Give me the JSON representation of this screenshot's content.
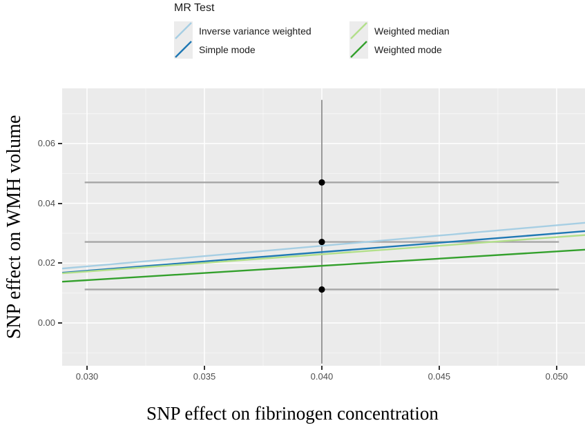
{
  "figure": {
    "background": "#ffffff",
    "panel_background": "#ebebeb",
    "gridline_color": "#ffffff",
    "tick_color": "#333333",
    "tick_label_color": "#4d4d4d",
    "axis_title_color": "#000000",
    "errorbar_color": "#a6a6a6",
    "vertical_errorbar_color": "#8f8f8f",
    "point_color": "#000000"
  },
  "legend": {
    "title": "MR Test",
    "entries": [
      {
        "label": "Inverse variance weighted",
        "color": "#a6cee3"
      },
      {
        "label": "Simple mode",
        "color": "#1f78b4"
      },
      {
        "label": "Weighted median",
        "color": "#b2df8a"
      },
      {
        "label": "Weighted mode",
        "color": "#33a02c"
      }
    ]
  },
  "chart_data": {
    "type": "scatter",
    "title": "",
    "xlabel": "SNP effect on fibrinogen concentration",
    "ylabel": "SNP effect on WMH volume",
    "legend_title": "MR Test",
    "legend_position": "top",
    "grid": true,
    "xlim": [
      0.02894,
      0.05121
    ],
    "ylim": [
      -0.01431,
      0.07847
    ],
    "x_major_ticks": [
      0.03,
      0.035,
      0.04,
      0.045,
      0.05
    ],
    "x_tick_labels": [
      "0.030",
      "0.035",
      "0.040",
      "0.045",
      "0.050"
    ],
    "x_minor_gridlines": [
      0.0325,
      0.0375,
      0.0425,
      0.0475
    ],
    "y_major_ticks": [
      0.06,
      0.04,
      0.02,
      0.0
    ],
    "y_tick_labels": [
      "0.06",
      "0.04",
      "0.02",
      "0.00"
    ],
    "y_minor_gridlines": [
      0.07,
      0.05,
      0.03,
      0.01,
      -0.01
    ],
    "points": [
      {
        "x": 0.04,
        "y": 0.047
      },
      {
        "x": 0.04,
        "y": 0.0271
      },
      {
        "x": 0.04,
        "y": 0.0112
      }
    ],
    "horizontal_error_bars": [
      {
        "y": 0.047,
        "x0": 0.0299,
        "x1": 0.0501
      },
      {
        "y": 0.0271,
        "x0": 0.0299,
        "x1": 0.0501
      },
      {
        "y": 0.0112,
        "x0": 0.0299,
        "x1": 0.0501
      }
    ],
    "vertical_error_bars": [
      {
        "x": 0.04,
        "y0": -0.0136,
        "y1": 0.0746
      }
    ],
    "series": [
      {
        "name": "Inverse variance weighted",
        "type": "regression-line",
        "color": "#a6cee3",
        "x": [
          0.02894,
          0.05121
        ],
        "y": [
          0.0182,
          0.0335
        ]
      },
      {
        "name": "Simple mode",
        "type": "regression-line",
        "color": "#1f78b4",
        "x": [
          0.02894,
          0.05121
        ],
        "y": [
          0.0168,
          0.0307
        ]
      },
      {
        "name": "Weighted median",
        "type": "regression-line",
        "color": "#b2df8a",
        "x": [
          0.02894,
          0.05121
        ],
        "y": [
          0.0166,
          0.0294
        ]
      },
      {
        "name": "Weighted mode",
        "type": "regression-line",
        "color": "#33a02c",
        "x": [
          0.02894,
          0.05121
        ],
        "y": [
          0.0138,
          0.0245
        ]
      }
    ]
  }
}
